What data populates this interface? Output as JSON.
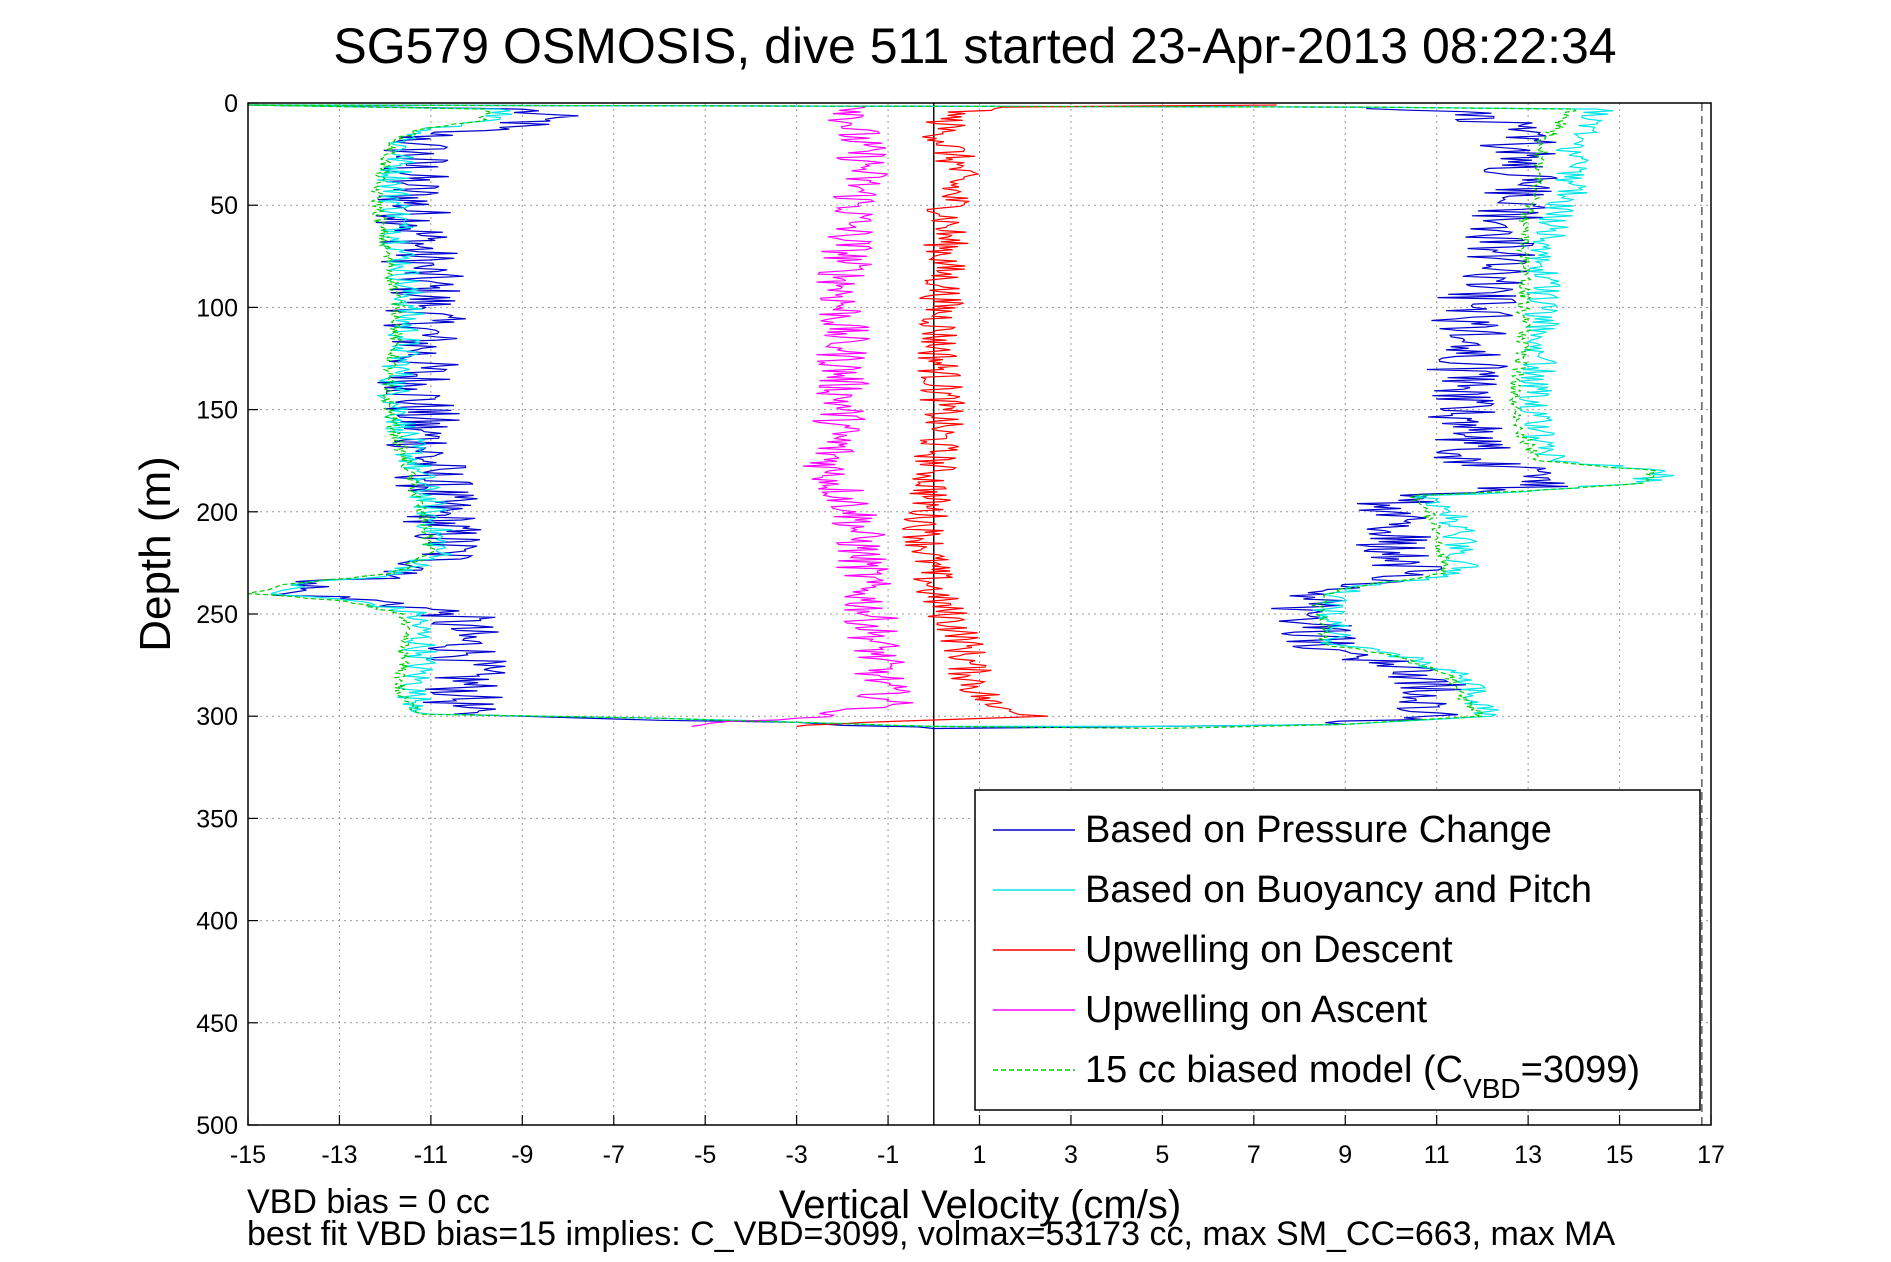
{
  "chart_data": {
    "type": "line",
    "title": "SG579 OSMOSIS, dive 511 started 23-Apr-2013 08:22:34",
    "xlabel": "Vertical Velocity (cm/s)",
    "ylabel": "Depth (m)",
    "xlim": [
      -15,
      17
    ],
    "ylim": [
      0,
      500
    ],
    "y_reversed": true,
    "xticks": [
      -15,
      -13,
      -11,
      -9,
      -7,
      -5,
      -3,
      -1,
      1,
      3,
      5,
      7,
      9,
      11,
      13,
      15,
      17
    ],
    "yticks": [
      0,
      50,
      100,
      150,
      200,
      250,
      300,
      350,
      400,
      450,
      500
    ],
    "grid": true,
    "legend_position": "bottom-right",
    "footer_lines": [
      "VBD bias = 0 cc",
      "best fit VBD bias=15 implies: C_VBD=3099, volmax=53173 cc, max SM_CC=663, max MA"
    ],
    "reference_lines": [
      {
        "axis": "x",
        "value": 0,
        "style": "solid",
        "color": "#000000"
      },
      {
        "axis": "x",
        "value": 16.8,
        "style": "dashed",
        "color": "#555555"
      }
    ],
    "series": [
      {
        "name": "Based on Pressure Change",
        "color": "#0000cc",
        "style": "solid",
        "jitter": 0.9,
        "points": [
          [
            -15,
            1
          ],
          [
            -9,
            3
          ],
          [
            -8.5,
            8
          ],
          [
            -9.5,
            12
          ],
          [
            -11,
            15
          ],
          [
            -11.3,
            20
          ],
          [
            -11.5,
            40
          ],
          [
            -11.3,
            60
          ],
          [
            -11.2,
            80
          ],
          [
            -11.1,
            100
          ],
          [
            -11.2,
            120
          ],
          [
            -11.3,
            140
          ],
          [
            -11.2,
            160
          ],
          [
            -11.0,
            180
          ],
          [
            -10.8,
            200
          ],
          [
            -10.6,
            220
          ],
          [
            -11.3,
            230
          ],
          [
            -13.5,
            235
          ],
          [
            -14.2,
            240
          ],
          [
            -12.0,
            244
          ],
          [
            -10.5,
            250
          ],
          [
            -10.2,
            270
          ],
          [
            -10.3,
            290
          ],
          [
            -10.5,
            299
          ],
          [
            -6,
            302
          ],
          [
            -3,
            303
          ],
          [
            0,
            306
          ],
          [
            5,
            305
          ],
          [
            9,
            304
          ],
          [
            10.8,
            300
          ],
          [
            11.0,
            290
          ],
          [
            10.8,
            280
          ],
          [
            9.5,
            270
          ],
          [
            8.5,
            265
          ],
          [
            8.3,
            255
          ],
          [
            8.2,
            245
          ],
          [
            8.6,
            238
          ],
          [
            10.3,
            230
          ],
          [
            10.2,
            220
          ],
          [
            10.0,
            210
          ],
          [
            10.0,
            200
          ],
          [
            10.2,
            192
          ],
          [
            12.0,
            190
          ],
          [
            13.8,
            186
          ],
          [
            13.5,
            181
          ],
          [
            11.8,
            175
          ],
          [
            11.7,
            160
          ],
          [
            11.6,
            140
          ],
          [
            11.7,
            120
          ],
          [
            11.8,
            100
          ],
          [
            12.2,
            80
          ],
          [
            12.5,
            60
          ],
          [
            12.8,
            40
          ],
          [
            12.8,
            20
          ],
          [
            12.2,
            5
          ],
          [
            9.5,
            2
          ],
          [
            -15,
            1
          ]
        ]
      },
      {
        "name": "Based on Buoyancy and Pitch",
        "color": "#00e5e5",
        "style": "solid",
        "jitter": 0.4,
        "points": [
          [
            -15,
            1
          ],
          [
            -9.5,
            3
          ],
          [
            -9.5,
            8
          ],
          [
            -11,
            13
          ],
          [
            -11.6,
            18
          ],
          [
            -11.8,
            40
          ],
          [
            -11.7,
            60
          ],
          [
            -11.6,
            80
          ],
          [
            -11.5,
            100
          ],
          [
            -11.6,
            120
          ],
          [
            -11.8,
            140
          ],
          [
            -11.6,
            160
          ],
          [
            -11.3,
            180
          ],
          [
            -11.0,
            200
          ],
          [
            -10.8,
            220
          ],
          [
            -11.6,
            230
          ],
          [
            -13.8,
            235
          ],
          [
            -14.5,
            240
          ],
          [
            -12.5,
            244
          ],
          [
            -11.3,
            250
          ],
          [
            -11.2,
            270
          ],
          [
            -11.4,
            290
          ],
          [
            -11.0,
            299
          ],
          [
            -6,
            301
          ],
          [
            -3,
            303
          ],
          [
            0,
            305
          ],
          [
            5,
            305
          ],
          [
            9,
            304
          ],
          [
            12.2,
            300
          ],
          [
            11.8,
            290
          ],
          [
            11.5,
            280
          ],
          [
            10.2,
            270
          ],
          [
            8.8,
            265
          ],
          [
            8.7,
            255
          ],
          [
            8.6,
            245
          ],
          [
            9.0,
            238
          ],
          [
            11.5,
            230
          ],
          [
            11.6,
            220
          ],
          [
            11.5,
            210
          ],
          [
            11.3,
            200
          ],
          [
            10.8,
            192
          ],
          [
            13.0,
            190
          ],
          [
            15.5,
            186
          ],
          [
            16.0,
            180
          ],
          [
            13.5,
            175
          ],
          [
            13.2,
            160
          ],
          [
            13.2,
            140
          ],
          [
            13.3,
            120
          ],
          [
            13.3,
            100
          ],
          [
            13.3,
            80
          ],
          [
            13.5,
            60
          ],
          [
            14.0,
            40
          ],
          [
            14.0,
            20
          ],
          [
            14.5,
            3
          ],
          [
            9.5,
            2
          ],
          [
            -15,
            1
          ]
        ]
      },
      {
        "name": "Upwelling on Descent",
        "color": "#ff0000",
        "style": "solid",
        "jitter": 0.5,
        "points": [
          [
            7.5,
            1
          ],
          [
            1.5,
            2
          ],
          [
            0.3,
            6
          ],
          [
            0.2,
            15
          ],
          [
            0.5,
            30
          ],
          [
            0.3,
            60
          ],
          [
            0.2,
            90
          ],
          [
            0.1,
            120
          ],
          [
            0.2,
            150
          ],
          [
            0.0,
            180
          ],
          [
            -0.2,
            210
          ],
          [
            0.0,
            240
          ],
          [
            0.6,
            260
          ],
          [
            0.8,
            280
          ],
          [
            1.2,
            295
          ],
          [
            2.5,
            300
          ],
          [
            -1.5,
            303
          ],
          [
            -3.0,
            305
          ]
        ]
      },
      {
        "name": "Upwelling on Ascent",
        "color": "#ff00ff",
        "style": "solid",
        "jitter": 0.6,
        "points": [
          [
            -1.5,
            2
          ],
          [
            -1.8,
            10
          ],
          [
            -1.5,
            30
          ],
          [
            -1.8,
            60
          ],
          [
            -2.0,
            90
          ],
          [
            -2.0,
            120
          ],
          [
            -2.0,
            150
          ],
          [
            -2.3,
            180
          ],
          [
            -1.7,
            200
          ],
          [
            -1.6,
            220
          ],
          [
            -1.5,
            240
          ],
          [
            -1.3,
            260
          ],
          [
            -1.2,
            280
          ],
          [
            -1.0,
            295
          ],
          [
            -3.0,
            301
          ],
          [
            -5.3,
            305
          ]
        ]
      },
      {
        "name": "15 cc biased model (C_VBD=3099)",
        "color": "#00cc00",
        "style": "dashed",
        "jitter": 0.15,
        "points": [
          [
            -15,
            1
          ],
          [
            -9.8,
            3
          ],
          [
            -9.8,
            8
          ],
          [
            -11,
            12
          ],
          [
            -11.8,
            18
          ],
          [
            -12.2,
            40
          ],
          [
            -12.1,
            60
          ],
          [
            -11.9,
            80
          ],
          [
            -11.7,
            100
          ],
          [
            -11.8,
            120
          ],
          [
            -12.0,
            140
          ],
          [
            -11.8,
            160
          ],
          [
            -11.5,
            180
          ],
          [
            -11.2,
            200
          ],
          [
            -11.0,
            220
          ],
          [
            -11.8,
            230
          ],
          [
            -14.0,
            235
          ],
          [
            -15.0,
            240
          ],
          [
            -12.8,
            244
          ],
          [
            -11.6,
            250
          ],
          [
            -11.6,
            270
          ],
          [
            -11.7,
            290
          ],
          [
            -11.2,
            299
          ],
          [
            -6,
            301
          ],
          [
            -3,
            303
          ],
          [
            0,
            305
          ],
          [
            5,
            306
          ],
          [
            9,
            304
          ],
          [
            12.0,
            300
          ],
          [
            11.5,
            290
          ],
          [
            11.3,
            280
          ],
          [
            10.0,
            270
          ],
          [
            8.6,
            265
          ],
          [
            8.5,
            255
          ],
          [
            8.4,
            245
          ],
          [
            8.8,
            238
          ],
          [
            11.2,
            230
          ],
          [
            11.1,
            220
          ],
          [
            11.0,
            210
          ],
          [
            10.8,
            200
          ],
          [
            10.5,
            192
          ],
          [
            12.8,
            190
          ],
          [
            15.5,
            186
          ],
          [
            15.8,
            180
          ],
          [
            13.2,
            175
          ],
          [
            12.8,
            160
          ],
          [
            12.7,
            140
          ],
          [
            12.9,
            120
          ],
          [
            12.9,
            100
          ],
          [
            12.9,
            80
          ],
          [
            12.9,
            60
          ],
          [
            13.2,
            40
          ],
          [
            13.3,
            20
          ],
          [
            14.0,
            3
          ],
          [
            9.5,
            2
          ],
          [
            -15,
            1
          ]
        ]
      }
    ]
  }
}
